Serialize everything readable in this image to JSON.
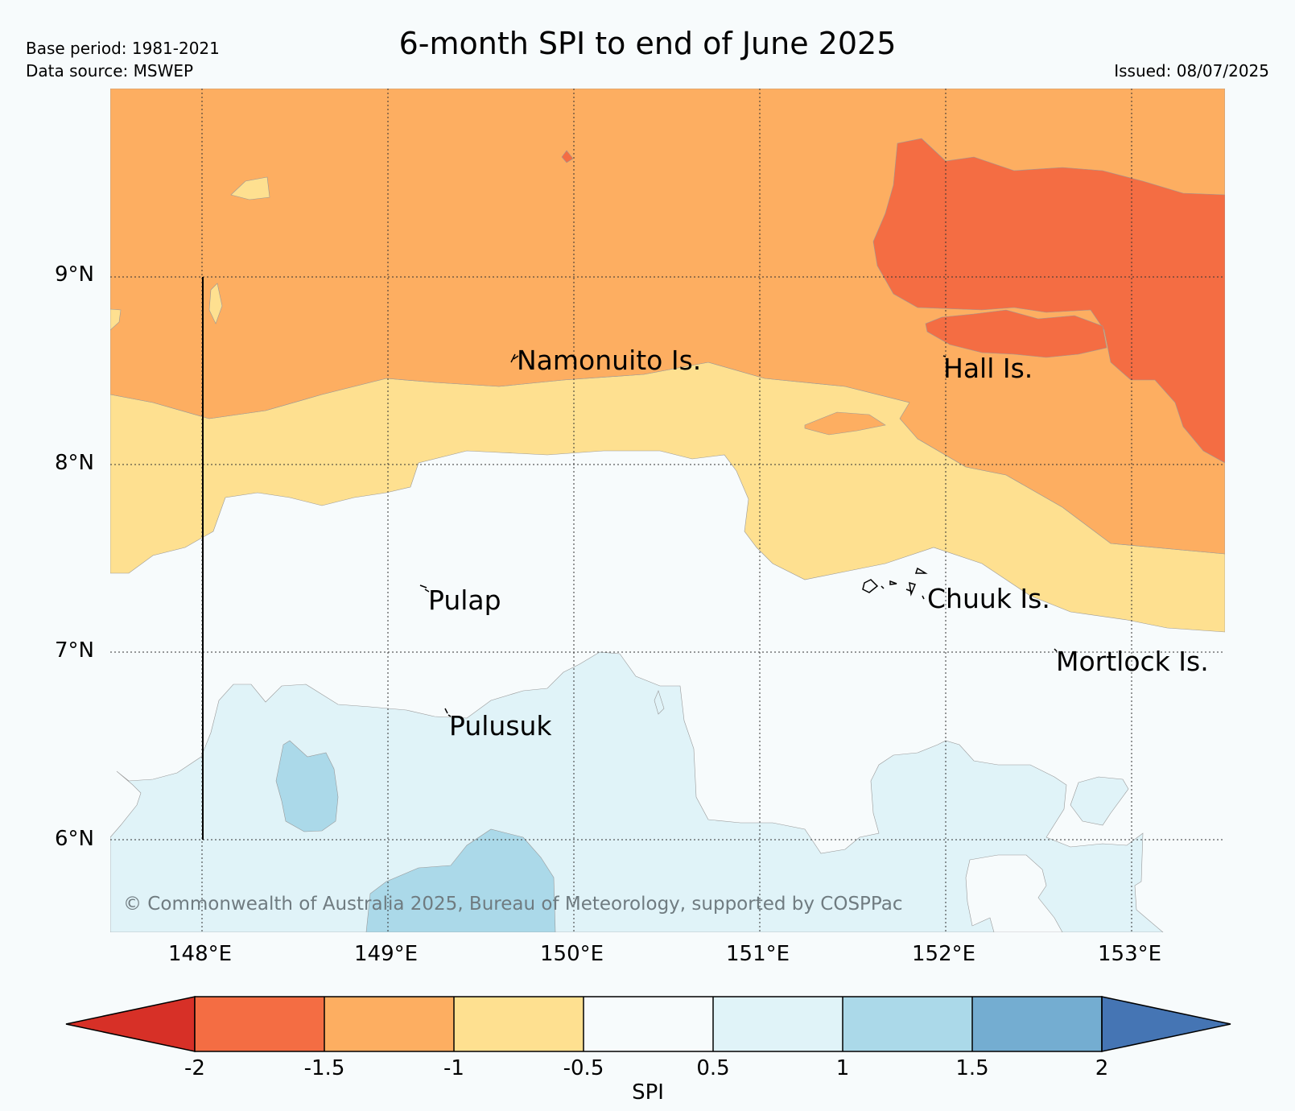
{
  "title": "6-month SPI to end of June 2025",
  "meta": {
    "base_period": "Base period: 1981-2021",
    "data_source": "Data source: MSWEP",
    "issued": "Issued: 08/07/2025"
  },
  "axes": {
    "lat_ticks": [
      "9°N",
      "8°N",
      "7°N",
      "6°N"
    ],
    "lon_ticks": [
      "148°E",
      "149°E",
      "150°E",
      "151°E",
      "152°E",
      "153°E"
    ]
  },
  "islands": [
    {
      "name": "Namonuito Is."
    },
    {
      "name": "Hall Is."
    },
    {
      "name": "Pulap"
    },
    {
      "name": "Chuuk Is."
    },
    {
      "name": "Mortlock Is."
    },
    {
      "name": "Pulusuk"
    }
  ],
  "copyright": "© Commonwealth of Australia 2025, Bureau of Meteorology, supported by COSPPac",
  "colorbar": {
    "label": "SPI",
    "ticks": [
      "-2",
      "-1.5",
      "-1",
      "-0.5",
      "0.5",
      "1",
      "1.5",
      "2"
    ],
    "colors": {
      "below_-2": "#d73027",
      "-2_to_-1.5": "#f46d43",
      "-1.5_to_-1": "#fdae61",
      "-1_to_-0.5": "#fee090",
      "-0.5_to_0.5": "#f7fbfc",
      "0.5_to_1": "#e0f3f8",
      "1_to_1.5": "#abd9e9",
      "1.5_to_2": "#74add1",
      "above_2": "#4575b4"
    }
  }
}
